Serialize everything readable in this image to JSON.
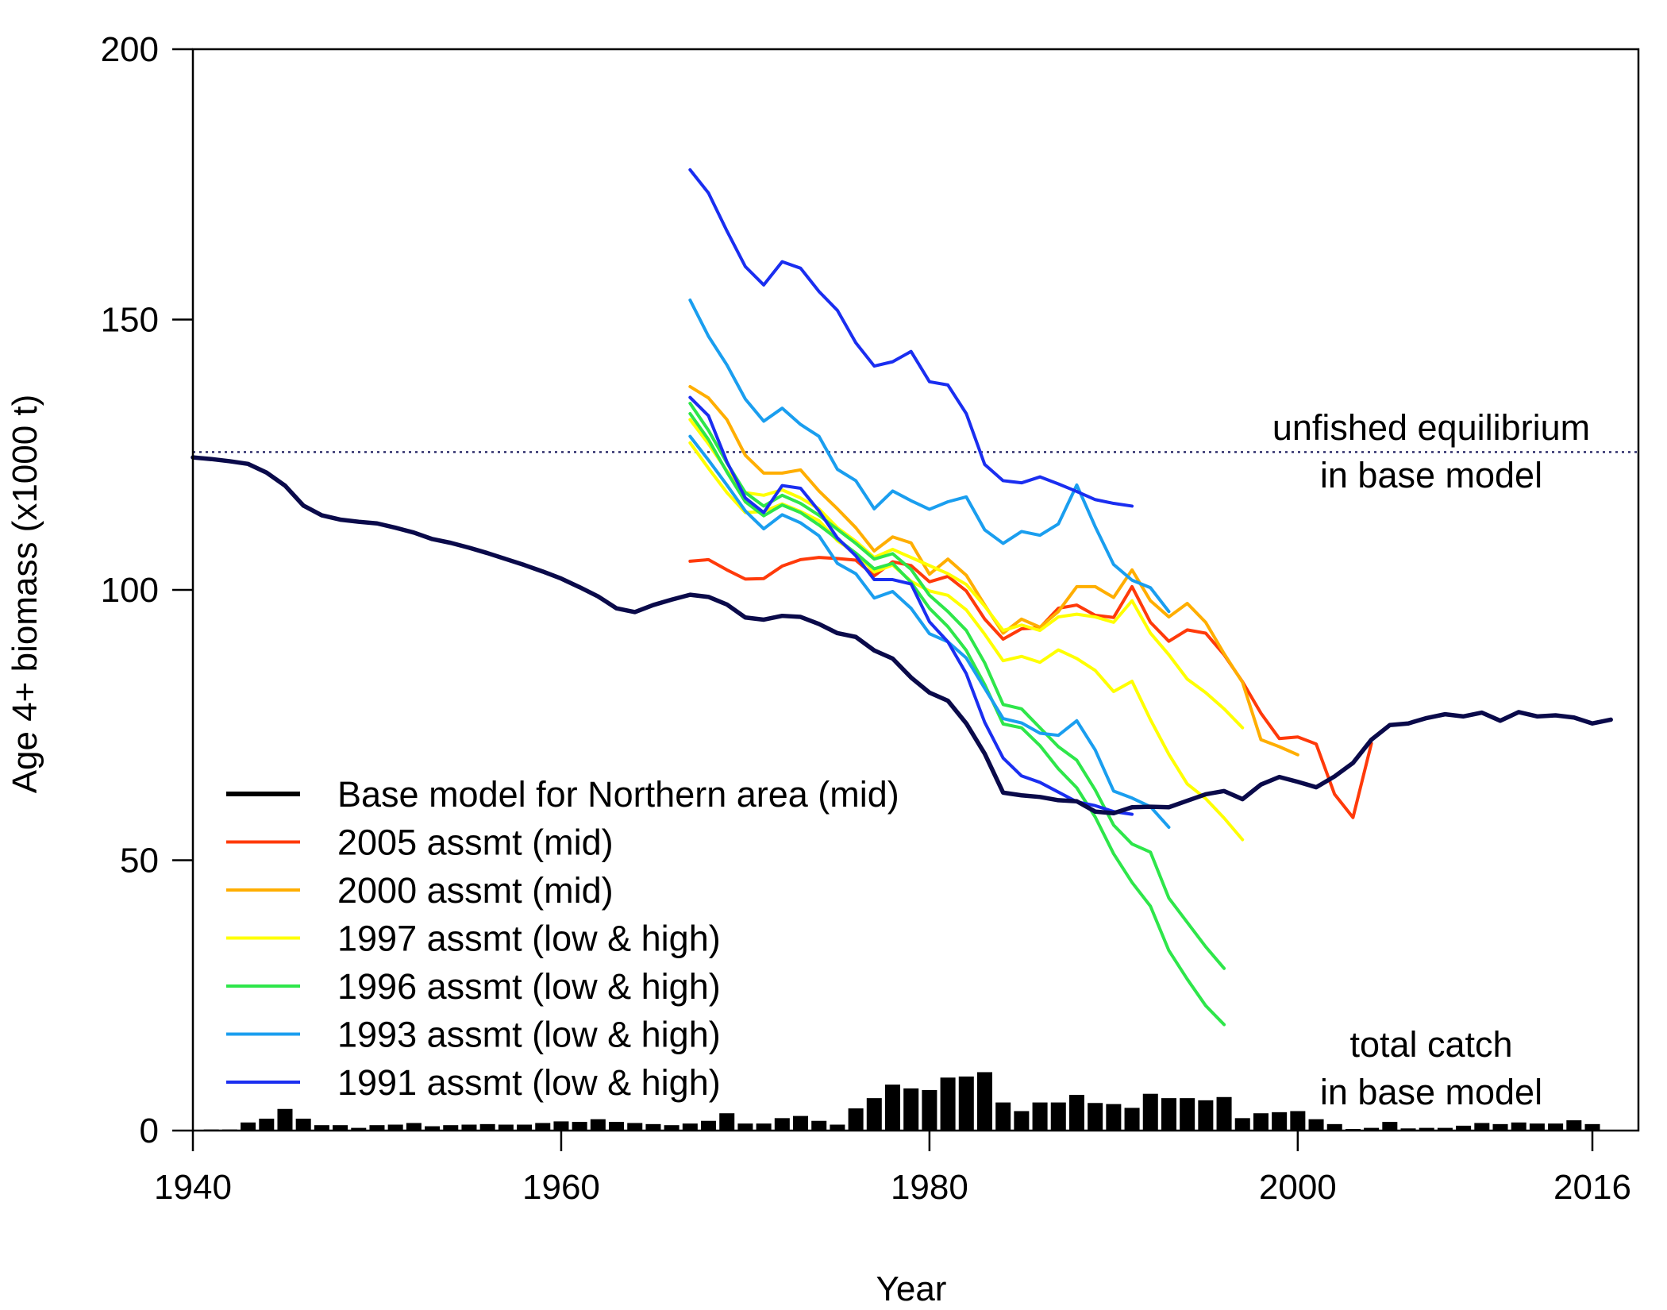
{
  "chart_data": {
    "type": "line",
    "xlabel": "Year",
    "ylabel": "Age 4+ biomass (x1000 t)",
    "xlim": [
      1940,
      2018.5
    ],
    "ylim": [
      0,
      200
    ],
    "x_ticks": [
      1940,
      1960,
      1980,
      2000,
      2016
    ],
    "y_ticks": [
      0,
      50,
      100,
      150,
      200
    ],
    "grid": false,
    "legend_placement": "bottom-left",
    "reference_line": {
      "value": 125.5,
      "style": "dotted",
      "color": "#1a1a5e",
      "label_lines": [
        "unfished equilibrium",
        "in base model"
      ]
    },
    "catch_label_lines": [
      "total catch",
      "in base model"
    ],
    "catch_bars": {
      "color": "#000000",
      "years": [
        1940,
        1941,
        1942,
        1943,
        1944,
        1945,
        1946,
        1947,
        1948,
        1949,
        1950,
        1951,
        1952,
        1953,
        1954,
        1955,
        1956,
        1957,
        1958,
        1959,
        1960,
        1961,
        1962,
        1963,
        1964,
        1965,
        1966,
        1967,
        1968,
        1969,
        1970,
        1971,
        1972,
        1973,
        1974,
        1975,
        1976,
        1977,
        1978,
        1979,
        1980,
        1981,
        1982,
        1983,
        1984,
        1985,
        1986,
        1987,
        1988,
        1989,
        1990,
        1991,
        1992,
        1993,
        1994,
        1995,
        1996,
        1997,
        1998,
        1999,
        2000,
        2001,
        2002,
        2003,
        2004,
        2005,
        2006,
        2007,
        2008,
        2009,
        2010,
        2011,
        2012,
        2013,
        2014,
        2015,
        2016
      ],
      "values": [
        0,
        0.2,
        0.2,
        1.5,
        2.2,
        4.0,
        2.2,
        1.0,
        1.0,
        0.5,
        1.0,
        1.1,
        1.4,
        0.8,
        1.0,
        1.1,
        1.2,
        1.1,
        1.1,
        1.4,
        1.7,
        1.6,
        2.1,
        1.6,
        1.4,
        1.2,
        1.0,
        1.3,
        1.8,
        3.2,
        1.3,
        1.3,
        2.3,
        2.7,
        1.8,
        1.1,
        4.1,
        6.0,
        8.5,
        7.8,
        7.5,
        9.8,
        10.0,
        10.8,
        5.2,
        3.6,
        5.2,
        5.2,
        6.6,
        5.1,
        4.9,
        4.2,
        6.8,
        6.0,
        6.0,
        5.6,
        6.2,
        2.3,
        3.2,
        3.4,
        3.6,
        2.1,
        1.2,
        0.3,
        0.5,
        1.6,
        0.4,
        0.5,
        0.5,
        0.9,
        1.4,
        1.2,
        1.5,
        1.3,
        1.3,
        1.9,
        1.2
      ]
    },
    "series": [
      {
        "name": "Base model for Northern area (mid)",
        "color": "#0a0a4a",
        "width": 5.5,
        "x": [
          1940,
          1941,
          1942,
          1943,
          1944,
          1945,
          1946,
          1947,
          1948,
          1949,
          1950,
          1951,
          1952,
          1953,
          1954,
          1955,
          1956,
          1957,
          1958,
          1959,
          1960,
          1961,
          1962,
          1963,
          1964,
          1965,
          1966,
          1967,
          1968,
          1969,
          1970,
          1971,
          1972,
          1973,
          1974,
          1975,
          1976,
          1977,
          1978,
          1979,
          1980,
          1981,
          1982,
          1983,
          1984,
          1985,
          1986,
          1987,
          1988,
          1989,
          1990,
          1991,
          1992,
          1993,
          1994,
          1995,
          1996,
          1997,
          1998,
          1999,
          2000,
          2001,
          2002,
          2003,
          2004,
          2005,
          2006,
          2007,
          2008,
          2009,
          2010,
          2011,
          2012,
          2013,
          2014,
          2015,
          2016,
          2017
        ],
        "y": [
          124.5,
          124.2,
          123.8,
          123.3,
          121.7,
          119.3,
          115.6,
          113.8,
          113.0,
          112.6,
          112.3,
          111.5,
          110.6,
          109.4,
          108.7,
          107.8,
          106.8,
          105.7,
          104.6,
          103.4,
          102.1,
          100.5,
          98.8,
          96.6,
          95.9,
          97.2,
          98.2,
          99.1,
          98.7,
          97.3,
          94.9,
          94.5,
          95.2,
          95.0,
          93.7,
          92.0,
          91.3,
          88.8,
          87.3,
          83.8,
          81.0,
          79.5,
          75.3,
          69.7,
          62.5,
          62.0,
          61.7,
          61.1,
          60.9,
          59.0,
          58.7,
          59.8,
          59.9,
          59.8,
          61.0,
          62.2,
          62.8,
          61.3,
          64.0,
          65.4,
          64.5,
          63.5,
          65.5,
          68.0,
          72.3,
          75.0,
          75.3,
          76.3,
          77.0,
          76.6,
          77.3,
          75.8,
          77.4,
          76.6,
          76.8,
          76.4,
          75.3,
          76.0
        ]
      },
      {
        "name": "2005 assmt (mid)",
        "color": "#ff3a0a",
        "width": 4,
        "x": [
          1967,
          1968,
          1969,
          1970,
          1971,
          1972,
          1973,
          1974,
          1975,
          1976,
          1977,
          1978,
          1979,
          1980,
          1981,
          1982,
          1983,
          1984,
          1985,
          1986,
          1987,
          1988,
          1989,
          1990,
          1991,
          1992,
          1993,
          1994,
          1995,
          1996,
          1997,
          1998,
          1999,
          2000,
          2001,
          2002,
          2003,
          2004
        ],
        "y": [
          105.3,
          105.6,
          103.7,
          102.0,
          102.1,
          104.4,
          105.6,
          106.0,
          105.8,
          105.5,
          102.6,
          105.2,
          104.5,
          101.5,
          102.5,
          99.8,
          94.6,
          90.9,
          92.8,
          93.0,
          96.6,
          97.2,
          95.3,
          94.9,
          100.6,
          94.0,
          90.5,
          92.6,
          92.0,
          88.0,
          83.0,
          77.2,
          72.5,
          72.8,
          71.5,
          62.2,
          57.9,
          71.6
        ]
      },
      {
        "name": "2000 assmt (mid)",
        "color": "#ffae00",
        "width": 4,
        "x": [
          1967,
          1968,
          1969,
          1970,
          1971,
          1972,
          1973,
          1974,
          1975,
          1976,
          1977,
          1978,
          1979,
          1980,
          1981,
          1982,
          1983,
          1984,
          1985,
          1986,
          1987,
          1988,
          1989,
          1990,
          1991,
          1992,
          1993,
          1994,
          1995,
          1996,
          1997,
          1998,
          1999,
          2000
        ],
        "y": [
          137.6,
          135.5,
          131.5,
          124.9,
          121.6,
          121.6,
          122.2,
          118.3,
          115.0,
          111.5,
          107.2,
          109.8,
          108.7,
          102.9,
          105.7,
          102.7,
          97.2,
          92.0,
          94.6,
          93.1,
          96.0,
          100.6,
          100.6,
          98.6,
          103.7,
          98.0,
          95.0,
          97.5,
          94.0,
          88.2,
          82.9,
          72.3,
          71.0,
          69.5
        ]
      },
      {
        "name": "1997 assmt (low)",
        "color": "#ffff00",
        "width": 4,
        "x": [
          1967,
          1968,
          1969,
          1970,
          1971,
          1972,
          1973,
          1974,
          1975,
          1976,
          1977,
          1978,
          1979,
          1980,
          1981,
          1982,
          1983,
          1984,
          1985,
          1986,
          1987,
          1988,
          1989,
          1990,
          1991,
          1992,
          1993,
          1994,
          1995,
          1996,
          1997
        ],
        "y": [
          127.2,
          122.5,
          118.0,
          114.3,
          114.5,
          115.9,
          114.5,
          112.8,
          109.1,
          106.8,
          103.3,
          104.6,
          101.6,
          99.8,
          99.0,
          96.3,
          91.8,
          86.9,
          87.7,
          86.6,
          88.9,
          87.3,
          85.1,
          81.2,
          83.1,
          76.0,
          69.6,
          64.1,
          61.4,
          57.8,
          53.8
        ]
      },
      {
        "name": "1997 assmt (high)",
        "color": "#ffff00",
        "width": 4,
        "x": [
          1967,
          1968,
          1969,
          1970,
          1971,
          1972,
          1973,
          1974,
          1975,
          1976,
          1977,
          1978,
          1979,
          1980,
          1981,
          1982,
          1983,
          1984,
          1985,
          1986,
          1987,
          1988,
          1989,
          1990,
          1991,
          1992,
          1993,
          1994,
          1995,
          1996,
          1997
        ],
        "y": [
          131.5,
          127.0,
          122.0,
          118.0,
          117.5,
          118.5,
          117.0,
          115.0,
          111.5,
          109.0,
          106.0,
          107.5,
          106.0,
          104.5,
          103.0,
          101.0,
          97.0,
          92.5,
          93.5,
          92.5,
          95.0,
          95.5,
          95.0,
          94.0,
          98.0,
          92.0,
          88.0,
          83.5,
          81.0,
          78.0,
          74.5
        ]
      },
      {
        "name": "1996 assmt (low)",
        "color": "#2ee64a",
        "width": 4,
        "x": [
          1967,
          1968,
          1969,
          1970,
          1971,
          1972,
          1973,
          1974,
          1975,
          1976,
          1977,
          1978,
          1979,
          1980,
          1981,
          1982,
          1983,
          1984,
          1985,
          1986,
          1987,
          1988,
          1989,
          1990,
          1991,
          1992,
          1993,
          1994,
          1995,
          1996
        ],
        "y": [
          132.6,
          127.8,
          121.8,
          116.3,
          113.7,
          115.7,
          114.3,
          112.0,
          109.4,
          106.8,
          103.9,
          104.9,
          101.4,
          96.6,
          93.2,
          88.8,
          82.5,
          75.2,
          74.5,
          71.2,
          66.9,
          63.4,
          58.0,
          51.2,
          45.9,
          41.5,
          33.3,
          28.0,
          23.1,
          19.6
        ]
      },
      {
        "name": "1996 assmt (high)",
        "color": "#2ee64a",
        "width": 4,
        "x": [
          1967,
          1968,
          1969,
          1970,
          1971,
          1972,
          1973,
          1974,
          1975,
          1976,
          1977,
          1978,
          1979,
          1980,
          1981,
          1982,
          1983,
          1984,
          1985,
          1986,
          1987,
          1988,
          1989,
          1990,
          1991,
          1992,
          1993,
          1994,
          1995,
          1996
        ],
        "y": [
          134.5,
          129.5,
          123.5,
          118.0,
          115.5,
          117.5,
          116.0,
          113.8,
          111.2,
          108.6,
          105.7,
          106.7,
          103.8,
          99.0,
          96.0,
          92.5,
          86.5,
          78.8,
          78.0,
          74.5,
          71.0,
          68.5,
          63.0,
          56.5,
          53.0,
          51.5,
          43.0,
          38.5,
          34.0,
          30.0
        ]
      },
      {
        "name": "1993 assmt (low)",
        "color": "#1a9eef",
        "width": 4,
        "x": [
          1967,
          1968,
          1969,
          1970,
          1971,
          1972,
          1973,
          1974,
          1975,
          1976,
          1977,
          1978,
          1979,
          1980,
          1981,
          1982,
          1983,
          1984,
          1985,
          1986,
          1987,
          1988,
          1989,
          1990,
          1991,
          1992,
          1993
        ],
        "y": [
          128.4,
          124.0,
          119.4,
          114.6,
          111.3,
          113.9,
          112.4,
          110.0,
          104.9,
          103.0,
          98.5,
          99.7,
          96.6,
          91.9,
          90.4,
          87.4,
          81.8,
          76.2,
          75.4,
          73.5,
          73.1,
          75.8,
          70.4,
          62.8,
          61.5,
          59.9,
          56.1
        ]
      },
      {
        "name": "1993 assmt (high)",
        "color": "#1a9eef",
        "width": 4,
        "x": [
          1967,
          1968,
          1969,
          1970,
          1971,
          1972,
          1973,
          1974,
          1975,
          1976,
          1977,
          1978,
          1979,
          1980,
          1981,
          1982,
          1983,
          1984,
          1985,
          1986,
          1987,
          1988,
          1989,
          1990,
          1991,
          1992,
          1993
        ],
        "y": [
          153.6,
          146.9,
          141.6,
          135.3,
          131.2,
          133.6,
          130.6,
          128.4,
          122.3,
          120.2,
          115.0,
          118.3,
          116.5,
          114.9,
          116.3,
          117.2,
          111.1,
          108.6,
          110.8,
          110.1,
          112.2,
          119.4,
          111.7,
          104.7,
          101.8,
          100.4,
          96.0
        ]
      },
      {
        "name": "1991 assmt (low)",
        "color": "#1a2ef0",
        "width": 4,
        "x": [
          1967,
          1968,
          1969,
          1970,
          1971,
          1972,
          1973,
          1974,
          1975,
          1976,
          1977,
          1978,
          1979,
          1980,
          1981,
          1982,
          1983,
          1984,
          1985,
          1986,
          1987,
          1988,
          1989,
          1990,
          1991
        ],
        "y": [
          135.6,
          132.2,
          123.7,
          117.0,
          114.3,
          119.3,
          118.8,
          114.6,
          109.6,
          106.3,
          101.9,
          101.9,
          101.1,
          94.1,
          90.4,
          84.5,
          75.5,
          68.9,
          65.6,
          64.4,
          62.6,
          60.8,
          60.1,
          59.0,
          58.5
        ]
      },
      {
        "name": "1991 assmt (high)",
        "color": "#1a2ef0",
        "width": 4,
        "x": [
          1967,
          1968,
          1969,
          1970,
          1971,
          1972,
          1973,
          1974,
          1975,
          1976,
          1977,
          1978,
          1979,
          1980,
          1981,
          1982,
          1983,
          1984,
          1985,
          1986,
          1987,
          1988,
          1989,
          1990,
          1991
        ],
        "y": [
          177.7,
          173.4,
          166.4,
          159.8,
          156.4,
          160.7,
          159.5,
          155.2,
          151.7,
          145.7,
          141.4,
          142.2,
          144.1,
          138.5,
          137.9,
          132.6,
          123.2,
          120.2,
          119.8,
          120.9,
          119.6,
          118.2,
          116.7,
          116.0,
          115.5
        ]
      }
    ],
    "legend": [
      {
        "label": "Base model for Northern area (mid)",
        "color": "#000000",
        "width": 6
      },
      {
        "label": "2005 assmt (mid)",
        "color": "#ff3a0a",
        "width": 4
      },
      {
        "label": "2000 assmt (mid)",
        "color": "#ffae00",
        "width": 4
      },
      {
        "label": "1997 assmt (low & high)",
        "color": "#ffff00",
        "width": 4
      },
      {
        "label": "1996 assmt (low & high)",
        "color": "#2ee64a",
        "width": 4
      },
      {
        "label": "1993 assmt (low & high)",
        "color": "#1a9eef",
        "width": 4
      },
      {
        "label": "1991 assmt (low & high)",
        "color": "#1a2ef0",
        "width": 4
      }
    ]
  }
}
